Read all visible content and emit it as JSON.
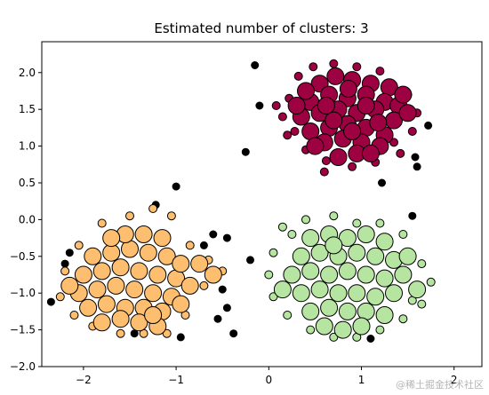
{
  "chart_data": {
    "type": "scatter",
    "title": "Estimated number of clusters: 3",
    "xlabel": "",
    "ylabel": "",
    "xlim": [
      -2.45,
      2.3
    ],
    "ylim": [
      -2.0,
      2.42
    ],
    "x_ticks": [
      -2,
      -1,
      0,
      1,
      2
    ],
    "y_ticks": [
      -2.0,
      -1.5,
      -1.0,
      -0.5,
      0.0,
      0.5,
      1.0,
      1.5,
      2.0
    ],
    "x_tick_labels": [
      "−2",
      "−1",
      "0",
      "1",
      "2"
    ],
    "y_tick_labels": [
      "−2.0",
      "−1.5",
      "−1.0",
      "−0.5",
      "0.0",
      "0.5",
      "1.0",
      "1.5",
      "2.0"
    ],
    "grid": false,
    "series": [
      {
        "color": "#9e0142",
        "cluster": 0,
        "center": [
          0.9,
          1.45
        ],
        "core_points": [
          [
            0.55,
            1.85
          ],
          [
            0.72,
            1.95
          ],
          [
            0.9,
            1.9
          ],
          [
            1.1,
            1.85
          ],
          [
            1.3,
            1.8
          ],
          [
            0.45,
            1.6
          ],
          [
            0.65,
            1.7
          ],
          [
            0.85,
            1.65
          ],
          [
            1.05,
            1.7
          ],
          [
            1.25,
            1.6
          ],
          [
            1.4,
            1.55
          ],
          [
            0.35,
            1.4
          ],
          [
            0.55,
            1.45
          ],
          [
            0.75,
            1.5
          ],
          [
            0.95,
            1.45
          ],
          [
            1.15,
            1.5
          ],
          [
            1.35,
            1.35
          ],
          [
            0.45,
            1.2
          ],
          [
            0.65,
            1.25
          ],
          [
            0.85,
            1.3
          ],
          [
            1.05,
            1.25
          ],
          [
            1.25,
            1.15
          ],
          [
            0.6,
            1.05
          ],
          [
            0.8,
            1.1
          ],
          [
            1.0,
            1.05
          ],
          [
            1.2,
            1.0
          ],
          [
            0.75,
            0.85
          ],
          [
            0.95,
            0.9
          ],
          [
            0.3,
            1.55
          ],
          [
            1.5,
            1.45
          ],
          [
            0.5,
            1.0
          ],
          [
            1.1,
            0.9
          ],
          [
            0.7,
            1.35
          ],
          [
            0.9,
            1.2
          ],
          [
            1.05,
            1.55
          ],
          [
            0.4,
            1.75
          ],
          [
            1.45,
            1.7
          ],
          [
            0.62,
            1.55
          ],
          [
            0.86,
            1.78
          ],
          [
            1.18,
            1.32
          ]
        ],
        "border_points": [
          [
            0.32,
            1.95
          ],
          [
            0.48,
            2.08
          ],
          [
            0.7,
            2.12
          ],
          [
            0.95,
            2.08
          ],
          [
            1.2,
            2.02
          ],
          [
            1.5,
            1.7
          ],
          [
            1.6,
            1.45
          ],
          [
            1.35,
            1.05
          ],
          [
            1.15,
            0.78
          ],
          [
            0.9,
            0.72
          ],
          [
            0.62,
            0.8
          ],
          [
            0.4,
            0.95
          ],
          [
            0.2,
            1.15
          ],
          [
            0.15,
            1.4
          ],
          [
            0.22,
            1.65
          ],
          [
            0.28,
            1.2
          ],
          [
            0.6,
            0.65
          ],
          [
            1.42,
            0.9
          ],
          [
            1.55,
            1.2
          ],
          [
            0.08,
            1.55
          ]
        ],
        "noise_points": [
          [
            -0.15,
            2.1
          ],
          [
            1.72,
            1.28
          ],
          [
            1.58,
            0.85
          ],
          [
            1.6,
            0.72
          ],
          [
            1.22,
            0.5
          ],
          [
            1.55,
            0.05
          ],
          [
            -0.1,
            1.55
          ],
          [
            -0.25,
            0.92
          ]
        ]
      },
      {
        "color": "#fdbf6f",
        "cluster": 1,
        "center": [
          -1.45,
          -0.85
        ],
        "core_points": [
          [
            -1.9,
            -0.5
          ],
          [
            -1.7,
            -0.45
          ],
          [
            -1.5,
            -0.4
          ],
          [
            -1.3,
            -0.45
          ],
          [
            -1.1,
            -0.5
          ],
          [
            -2.0,
            -0.75
          ],
          [
            -1.8,
            -0.7
          ],
          [
            -1.6,
            -0.65
          ],
          [
            -1.4,
            -0.7
          ],
          [
            -1.2,
            -0.75
          ],
          [
            -1.0,
            -0.8
          ],
          [
            -2.05,
            -1.0
          ],
          [
            -1.85,
            -0.95
          ],
          [
            -1.65,
            -0.9
          ],
          [
            -1.45,
            -0.95
          ],
          [
            -1.25,
            -1.0
          ],
          [
            -1.05,
            -1.05
          ],
          [
            -1.95,
            -1.2
          ],
          [
            -1.75,
            -1.15
          ],
          [
            -1.55,
            -1.2
          ],
          [
            -1.35,
            -1.2
          ],
          [
            -1.15,
            -1.25
          ],
          [
            -1.8,
            -1.4
          ],
          [
            -1.6,
            -1.35
          ],
          [
            -1.4,
            -1.4
          ],
          [
            -1.2,
            -1.45
          ],
          [
            -1.55,
            -0.2
          ],
          [
            -1.35,
            -0.2
          ],
          [
            -1.15,
            -0.25
          ],
          [
            -0.95,
            -0.6
          ],
          [
            -0.85,
            -0.9
          ],
          [
            -0.75,
            -0.6
          ],
          [
            -0.6,
            -0.75
          ],
          [
            -2.15,
            -0.9
          ],
          [
            -1.7,
            -0.25
          ],
          [
            -1.25,
            -1.3
          ],
          [
            -0.95,
            -1.15
          ]
        ],
        "border_points": [
          [
            -2.25,
            -1.05
          ],
          [
            -2.2,
            -0.7
          ],
          [
            -2.05,
            -0.35
          ],
          [
            -1.8,
            -0.05
          ],
          [
            -1.5,
            0.05
          ],
          [
            -1.25,
            0.15
          ],
          [
            -1.05,
            0.05
          ],
          [
            -0.85,
            -0.35
          ],
          [
            -0.7,
            -0.9
          ],
          [
            -0.9,
            -1.3
          ],
          [
            -1.1,
            -1.55
          ],
          [
            -1.35,
            -1.55
          ],
          [
            -1.6,
            -1.55
          ],
          [
            -1.9,
            -1.45
          ],
          [
            -2.1,
            -1.3
          ],
          [
            -0.65,
            -0.55
          ],
          [
            -0.5,
            -0.7
          ]
        ],
        "noise_points": [
          [
            -2.35,
            -1.12
          ],
          [
            -2.15,
            -0.45
          ],
          [
            -2.2,
            -0.6
          ],
          [
            -1.22,
            0.2
          ],
          [
            -1.0,
            0.45
          ],
          [
            -1.45,
            -1.55
          ],
          [
            -0.95,
            -1.6
          ]
        ]
      },
      {
        "color": "#b5e5a0",
        "cluster": 2,
        "center": [
          0.9,
          -0.8
        ],
        "core_points": [
          [
            0.45,
            -0.25
          ],
          [
            0.65,
            -0.2
          ],
          [
            0.85,
            -0.25
          ],
          [
            1.05,
            -0.2
          ],
          [
            1.25,
            -0.3
          ],
          [
            0.35,
            -0.5
          ],
          [
            0.55,
            -0.45
          ],
          [
            0.75,
            -0.5
          ],
          [
            0.95,
            -0.45
          ],
          [
            1.15,
            -0.5
          ],
          [
            1.35,
            -0.55
          ],
          [
            0.25,
            -0.75
          ],
          [
            0.45,
            -0.7
          ],
          [
            0.65,
            -0.75
          ],
          [
            0.85,
            -0.7
          ],
          [
            1.05,
            -0.75
          ],
          [
            1.25,
            -0.8
          ],
          [
            1.45,
            -0.75
          ],
          [
            0.35,
            -1.0
          ],
          [
            0.55,
            -0.95
          ],
          [
            0.75,
            -1.0
          ],
          [
            0.95,
            -1.0
          ],
          [
            1.15,
            -1.05
          ],
          [
            1.35,
            -1.0
          ],
          [
            0.45,
            -1.25
          ],
          [
            0.65,
            -1.2
          ],
          [
            0.85,
            -1.25
          ],
          [
            1.05,
            -1.25
          ],
          [
            1.25,
            -1.3
          ],
          [
            0.6,
            -1.45
          ],
          [
            0.8,
            -1.5
          ],
          [
            1.0,
            -1.45
          ],
          [
            1.5,
            -0.5
          ],
          [
            0.15,
            -0.95
          ],
          [
            1.6,
            -0.95
          ],
          [
            0.7,
            -0.35
          ]
        ],
        "border_points": [
          [
            0.15,
            -0.1
          ],
          [
            0.4,
            0.0
          ],
          [
            0.7,
            0.05
          ],
          [
            0.95,
            -0.05
          ],
          [
            1.2,
            -0.05
          ],
          [
            1.45,
            -0.2
          ],
          [
            1.65,
            -0.6
          ],
          [
            1.75,
            -0.85
          ],
          [
            1.65,
            -1.15
          ],
          [
            1.45,
            -1.35
          ],
          [
            1.2,
            -1.5
          ],
          [
            0.95,
            -1.6
          ],
          [
            0.7,
            -1.6
          ],
          [
            0.45,
            -1.5
          ],
          [
            0.2,
            -1.3
          ],
          [
            0.05,
            -1.05
          ],
          [
            0.0,
            -0.75
          ],
          [
            0.05,
            -0.45
          ],
          [
            0.25,
            -0.2
          ],
          [
            1.55,
            -1.1
          ]
        ],
        "noise_points": [
          [
            -0.5,
            -0.95
          ],
          [
            -0.45,
            -1.2
          ],
          [
            -0.55,
            -1.35
          ],
          [
            -0.38,
            -1.55
          ],
          [
            -0.6,
            -0.2
          ],
          [
            -0.7,
            -0.35
          ],
          [
            -0.45,
            -0.25
          ],
          [
            -0.2,
            -0.55
          ],
          [
            1.1,
            -1.62
          ]
        ]
      }
    ],
    "noise_color": "#000000",
    "watermark": "@稀土掘金技术社区"
  }
}
